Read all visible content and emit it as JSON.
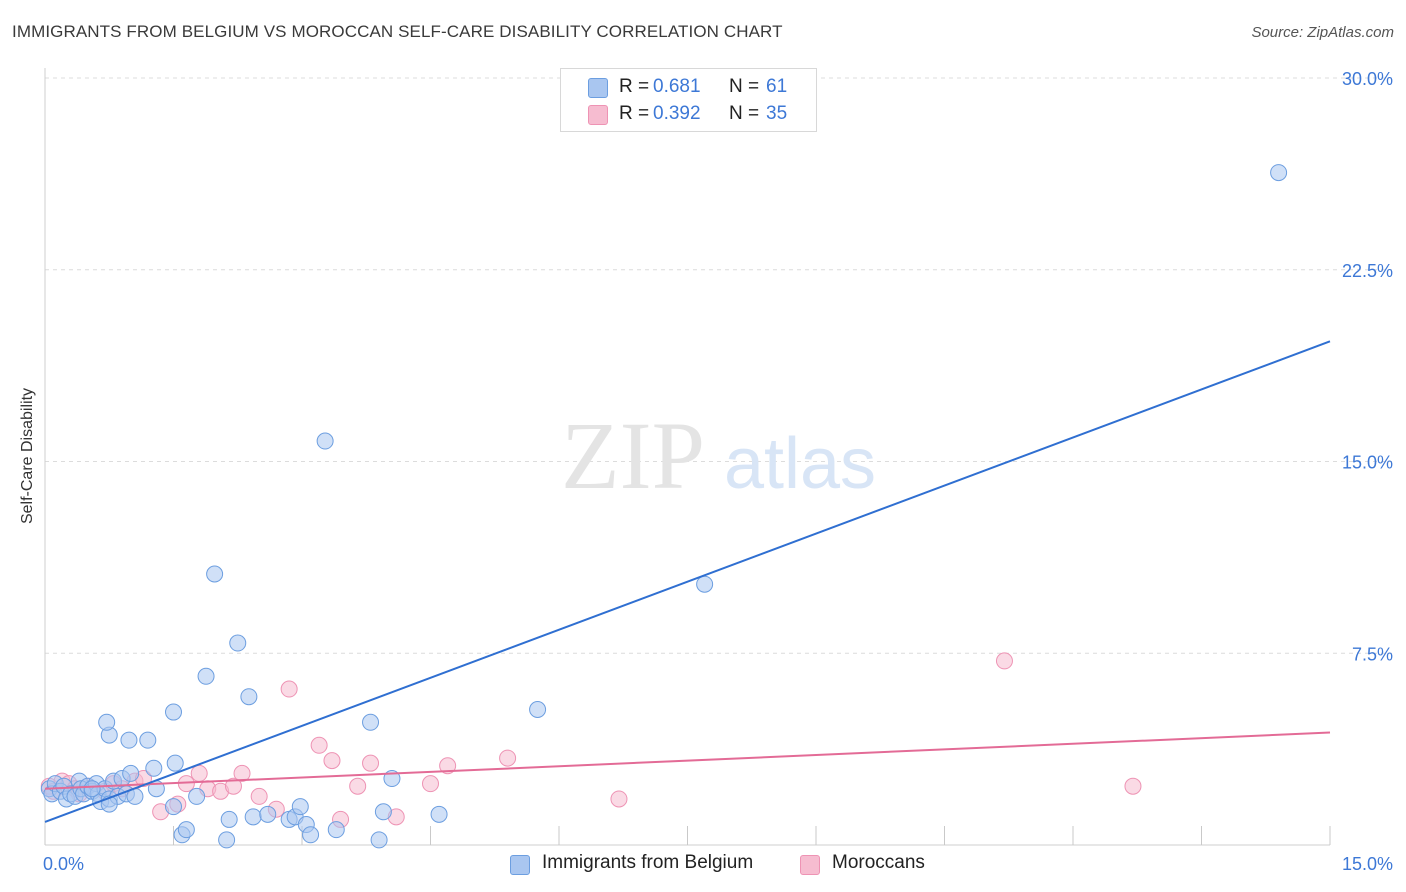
{
  "header": {
    "title": "IMMIGRANTS FROM BELGIUM VS MOROCCAN SELF-CARE DISABILITY CORRELATION CHART",
    "source": "Source: ZipAtlas.com"
  },
  "watermark": {
    "zip": "ZIP",
    "atlas": "atlas"
  },
  "legend": {
    "rows": [
      {
        "r_label": "R =",
        "r_value": "0.681",
        "n_label": "N =",
        "n_value": "61"
      },
      {
        "r_label": "R =",
        "r_value": "0.392",
        "n_label": "N =",
        "n_value": "35"
      }
    ]
  },
  "colors": {
    "blue_fill": "#a9c6f0",
    "blue_stroke": "#6c9ee0",
    "blue_line": "#2f6fd1",
    "pink_fill": "#f6bcd0",
    "pink_stroke": "#ee93b4",
    "pink_line": "#e36b96",
    "tick_text": "#3d78d6",
    "grid": "#dcdcdc"
  },
  "chart_data": {
    "type": "scatter",
    "xlabel": "",
    "ylabel": "Self-Care Disability",
    "xlim": [
      0,
      15
    ],
    "ylim": [
      0,
      30
    ],
    "x_ticks": [
      "0.0%",
      "15.0%"
    ],
    "y_ticks": [
      {
        "value": 7.5,
        "label": "7.5%"
      },
      {
        "value": 15,
        "label": "15.0%"
      },
      {
        "value": 22.5,
        "label": "22.5%"
      },
      {
        "value": 30,
        "label": "30.0%"
      }
    ],
    "legend_position": "bottom",
    "series": [
      {
        "name": "Immigrants from Belgium",
        "color": "#a9c6f0",
        "trend": {
          "x": [
            0,
            15
          ],
          "y": [
            0.9,
            19.7
          ]
        },
        "points": [
          [
            0.05,
            2.2
          ],
          [
            0.08,
            2.0
          ],
          [
            0.12,
            2.4
          ],
          [
            0.18,
            2.1
          ],
          [
            0.22,
            2.3
          ],
          [
            0.25,
            1.8
          ],
          [
            0.3,
            2.0
          ],
          [
            0.35,
            1.9
          ],
          [
            0.4,
            2.5
          ],
          [
            0.42,
            2.2
          ],
          [
            0.45,
            2.0
          ],
          [
            0.5,
            2.3
          ],
          [
            0.55,
            2.1
          ],
          [
            0.6,
            2.4
          ],
          [
            0.62,
            2.0
          ],
          [
            0.65,
            1.7
          ],
          [
            0.7,
            2.2
          ],
          [
            0.75,
            1.8
          ],
          [
            0.8,
            2.5
          ],
          [
            0.85,
            1.9
          ],
          [
            0.9,
            2.6
          ],
          [
            0.95,
            2.0
          ],
          [
            1.0,
            2.8
          ],
          [
            1.05,
            1.9
          ],
          [
            0.75,
            1.6
          ],
          [
            0.55,
            2.2
          ],
          [
            0.75,
            4.3
          ],
          [
            0.72,
            4.8
          ],
          [
            0.98,
            4.1
          ],
          [
            1.2,
            4.1
          ],
          [
            1.27,
            3.0
          ],
          [
            1.3,
            2.2
          ],
          [
            1.5,
            5.2
          ],
          [
            1.52,
            3.2
          ],
          [
            1.6,
            0.4
          ],
          [
            1.65,
            0.6
          ],
          [
            1.5,
            1.5
          ],
          [
            1.77,
            1.9
          ],
          [
            1.88,
            6.6
          ],
          [
            1.98,
            10.6
          ],
          [
            2.12,
            0.2
          ],
          [
            2.15,
            1.0
          ],
          [
            2.25,
            7.9
          ],
          [
            2.38,
            5.8
          ],
          [
            2.43,
            1.1
          ],
          [
            2.6,
            1.2
          ],
          [
            2.85,
            1.0
          ],
          [
            2.92,
            1.1
          ],
          [
            2.98,
            1.5
          ],
          [
            3.05,
            0.8
          ],
          [
            3.1,
            0.4
          ],
          [
            3.27,
            15.8
          ],
          [
            3.4,
            0.6
          ],
          [
            3.8,
            4.8
          ],
          [
            3.9,
            0.2
          ],
          [
            3.95,
            1.3
          ],
          [
            4.05,
            2.6
          ],
          [
            4.6,
            1.2
          ],
          [
            5.75,
            5.3
          ],
          [
            7.7,
            10.2
          ],
          [
            14.4,
            26.3
          ]
        ]
      },
      {
        "name": "Moroccans",
        "color": "#f6bcd0",
        "trend": {
          "x": [
            0,
            15
          ],
          "y": [
            2.2,
            4.4
          ]
        },
        "points": [
          [
            0.05,
            2.3
          ],
          [
            0.1,
            2.1
          ],
          [
            0.2,
            2.5
          ],
          [
            0.28,
            2.4
          ],
          [
            0.35,
            2.2
          ],
          [
            0.4,
            2.0
          ],
          [
            0.5,
            2.3
          ],
          [
            0.7,
            2.1
          ],
          [
            0.8,
            2.4
          ],
          [
            0.9,
            2.2
          ],
          [
            1.05,
            2.5
          ],
          [
            1.15,
            2.6
          ],
          [
            1.35,
            1.3
          ],
          [
            1.55,
            1.6
          ],
          [
            1.65,
            2.4
          ],
          [
            1.8,
            2.8
          ],
          [
            1.9,
            2.2
          ],
          [
            2.05,
            2.1
          ],
          [
            2.2,
            2.3
          ],
          [
            2.3,
            2.8
          ],
          [
            2.5,
            1.9
          ],
          [
            2.7,
            1.4
          ],
          [
            2.85,
            6.1
          ],
          [
            3.2,
            3.9
          ],
          [
            3.35,
            3.3
          ],
          [
            3.45,
            1.0
          ],
          [
            3.65,
            2.3
          ],
          [
            3.8,
            3.2
          ],
          [
            4.1,
            1.1
          ],
          [
            4.5,
            2.4
          ],
          [
            4.7,
            3.1
          ],
          [
            5.4,
            3.4
          ],
          [
            6.7,
            1.8
          ],
          [
            11.2,
            7.2
          ],
          [
            12.7,
            2.3
          ]
        ]
      }
    ]
  }
}
